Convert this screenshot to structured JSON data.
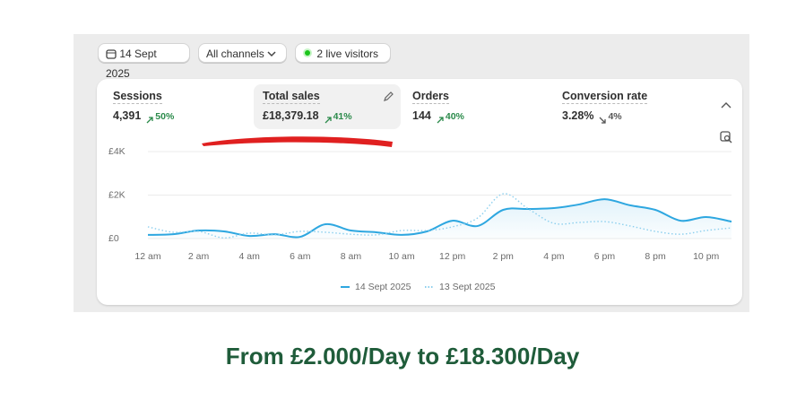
{
  "toolbar": {
    "date": "14 Sept 2025",
    "channels": "All channels",
    "live": "2 live visitors"
  },
  "metrics": [
    {
      "label": "Sessions",
      "value": "4,391",
      "change": "50%"
    },
    {
      "label": "Total sales",
      "value": "£18,379.18",
      "change": "41%"
    },
    {
      "label": "Orders",
      "value": "144",
      "change": "40%"
    },
    {
      "label": "Conversion rate",
      "value": "3.28%",
      "change": "4%"
    }
  ],
  "chart_data": {
    "type": "line",
    "x": [
      0,
      1,
      2,
      3,
      4,
      5,
      6,
      7,
      8,
      9,
      10,
      11,
      12,
      13,
      14,
      15,
      16,
      17,
      18,
      19,
      20,
      21,
      22,
      23
    ],
    "xlim": [
      0,
      23
    ],
    "xticks": [
      {
        "value": 0,
        "label": "12 am"
      },
      {
        "value": 2,
        "label": "2 am"
      },
      {
        "value": 4,
        "label": "4 am"
      },
      {
        "value": 6,
        "label": "6 am"
      },
      {
        "value": 8,
        "label": "8 am"
      },
      {
        "value": 10,
        "label": "10 am"
      },
      {
        "value": 12,
        "label": "12 pm"
      },
      {
        "value": 14,
        "label": "2 pm"
      },
      {
        "value": 16,
        "label": "4 pm"
      },
      {
        "value": 18,
        "label": "6 pm"
      },
      {
        "value": 20,
        "label": "8 pm"
      },
      {
        "value": 22,
        "label": "10 pm"
      }
    ],
    "ylim": [
      0,
      4000
    ],
    "yticks": [
      {
        "value": 0,
        "label": "£0"
      },
      {
        "value": 2000,
        "label": "£2K"
      },
      {
        "value": 4000,
        "label": "£4K"
      }
    ],
    "grid": true,
    "series": [
      {
        "name": "14 Sept 2025",
        "color": "#2ea7e0",
        "style": "solid",
        "values": [
          170,
          200,
          370,
          330,
          120,
          200,
          80,
          660,
          370,
          290,
          170,
          330,
          820,
          580,
          1320,
          1360,
          1400,
          1570,
          1810,
          1530,
          1320,
          820,
          990,
          780
        ]
      },
      {
        "name": "13 Sept 2025",
        "color": "#8ccfee",
        "style": "dotted",
        "values": [
          540,
          290,
          330,
          30,
          250,
          170,
          330,
          290,
          200,
          170,
          370,
          370,
          540,
          950,
          2060,
          1360,
          700,
          740,
          780,
          580,
          330,
          200,
          370,
          490
        ]
      }
    ]
  },
  "caption": "From £2.000/Day to £18.300/Day"
}
